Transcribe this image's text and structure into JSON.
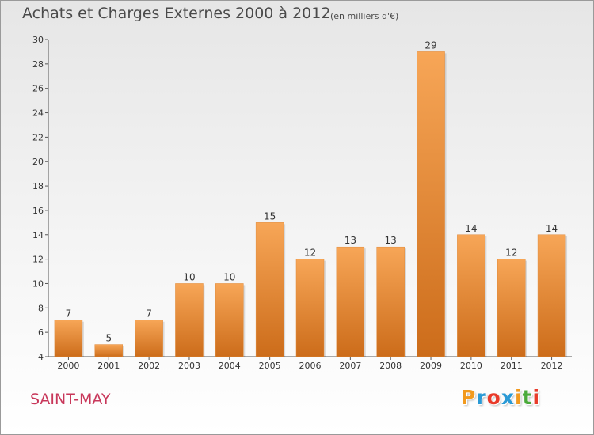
{
  "header": {
    "title": "Achats et Charges Externes 2000 à 2012",
    "subtitle": "(en milliers d'€)"
  },
  "footer": {
    "commune": "SAINT-MAY",
    "logo_letters": [
      "P",
      "r",
      "o",
      "x",
      "i",
      "t",
      "i"
    ],
    "logo_colors": [
      "#f29a1e",
      "#2a9ad6",
      "#e93b2a",
      "#2a9ad6",
      "#f29a1e",
      "#4aaa3a",
      "#e93b2a"
    ]
  },
  "colors": {
    "bar_light": "#f7a657",
    "bar_dark": "#cc6c1a",
    "axis": "#555555",
    "grid": "#dddddd"
  },
  "chart_data": {
    "type": "bar",
    "title": "Achats et Charges Externes 2000 à 2012",
    "subtitle": "(en milliers d'€)",
    "categories": [
      "2000",
      "2001",
      "2002",
      "2003",
      "2004",
      "2005",
      "2006",
      "2007",
      "2008",
      "2009",
      "2010",
      "2011",
      "2012"
    ],
    "values": [
      7,
      5,
      7,
      10,
      10,
      15,
      12,
      13,
      13,
      29,
      14,
      12,
      14
    ],
    "ylim": [
      4,
      30
    ],
    "yticks": [
      4,
      6,
      8,
      10,
      12,
      14,
      16,
      18,
      20,
      22,
      24,
      26,
      28,
      30
    ],
    "grid": false,
    "legend": "none"
  }
}
